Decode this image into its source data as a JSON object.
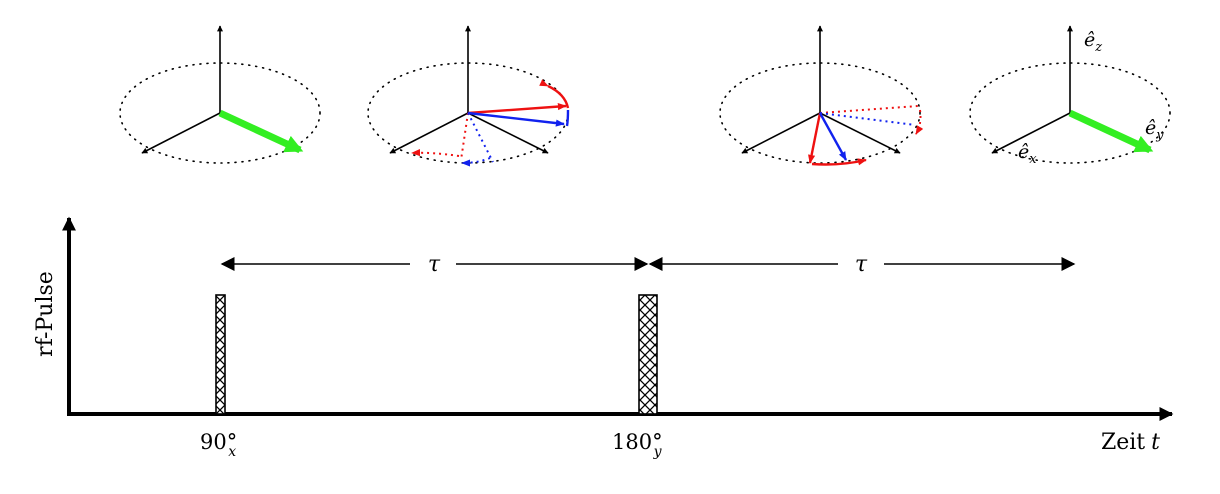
{
  "axis": {
    "y_label": "rf-Pulse",
    "x_label_text": "Zeit",
    "x_label_var": "t"
  },
  "intervals": [
    {
      "label": "τ"
    },
    {
      "label": "τ"
    }
  ],
  "pulses": [
    {
      "angle": "90°",
      "axis_sub": "x"
    },
    {
      "angle": "180°",
      "axis_sub": "y"
    }
  ],
  "basis_labels": {
    "ez": "ê",
    "ez_sub": "z",
    "ey": "ê",
    "ey_sub": "y",
    "ex": "ê",
    "ex_sub": "x"
  },
  "colors": {
    "magnetization": "#33ee22",
    "fast_spins": "#ee1111",
    "slow_spins": "#1122ee",
    "axes": "#000000"
  }
}
